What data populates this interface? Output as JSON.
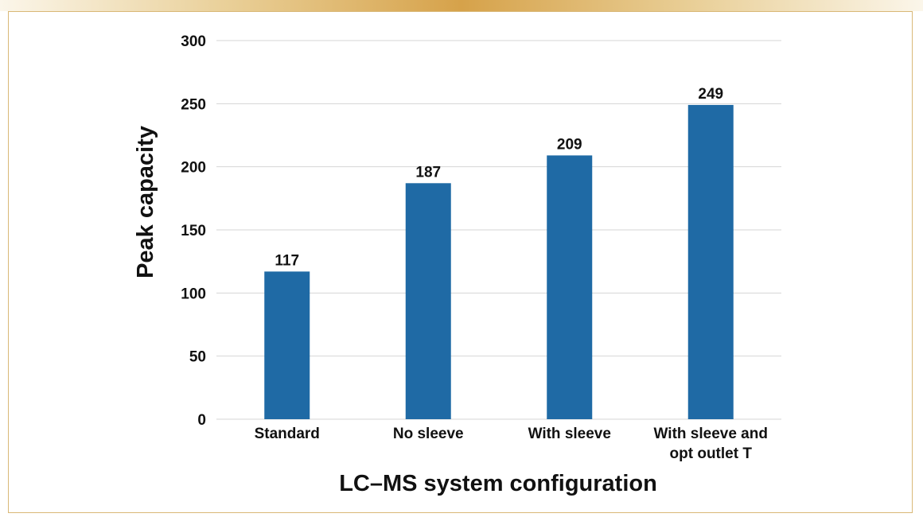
{
  "chart_data": {
    "type": "bar",
    "categories": [
      [
        "Standard"
      ],
      [
        "No sleeve"
      ],
      [
        "With sleeve"
      ],
      [
        "With sleeve and",
        "opt outlet T"
      ]
    ],
    "values": [
      117,
      187,
      209,
      249
    ],
    "title": "",
    "xlabel": "LC–MS system configuration",
    "ylabel": "Peak capacity",
    "ylim": [
      0,
      300
    ],
    "yticks": [
      0,
      50,
      100,
      150,
      200,
      250,
      300
    ],
    "grid": true,
    "legend": "none",
    "bar_color": "#1f6aa5",
    "grid_color": "#d4d4d4"
  }
}
